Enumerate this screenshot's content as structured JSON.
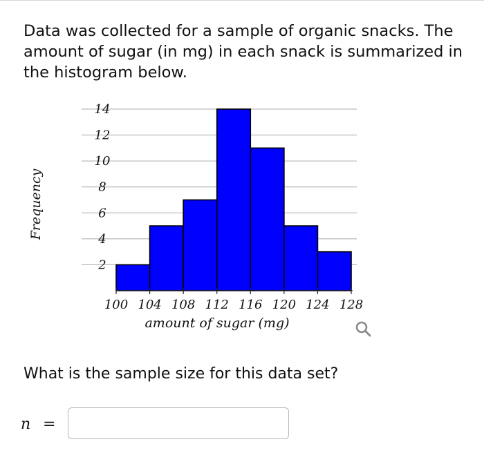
{
  "question": {
    "intro": "Data was collected for a sample of organic snacks. The amount of sugar (in mg) in each snack is summarized in the histogram below.",
    "prompt": "What is the sample size for this data set?",
    "answer_label": "n",
    "equals": "=",
    "answer_value": ""
  },
  "icons": {
    "zoom": "magnifying-glass-icon"
  },
  "chart_data": {
    "type": "bar",
    "subtype": "histogram",
    "title": "",
    "xlabel": "amount of sugar (mg)",
    "ylabel": "Frequency",
    "bin_edges": [
      100,
      104,
      108,
      112,
      116,
      120,
      124,
      128
    ],
    "x_ticks": [
      "100",
      "104",
      "108",
      "112",
      "116",
      "120",
      "124",
      "128"
    ],
    "y_ticks": [
      "2",
      "4",
      "6",
      "8",
      "10",
      "12",
      "14"
    ],
    "values": [
      2,
      5,
      7,
      14,
      11,
      5,
      3
    ],
    "ylim": [
      0,
      14
    ],
    "xlim": [
      100,
      128
    ],
    "grid": true,
    "bar_color": "#0000ff",
    "edge_color": "#000000"
  }
}
